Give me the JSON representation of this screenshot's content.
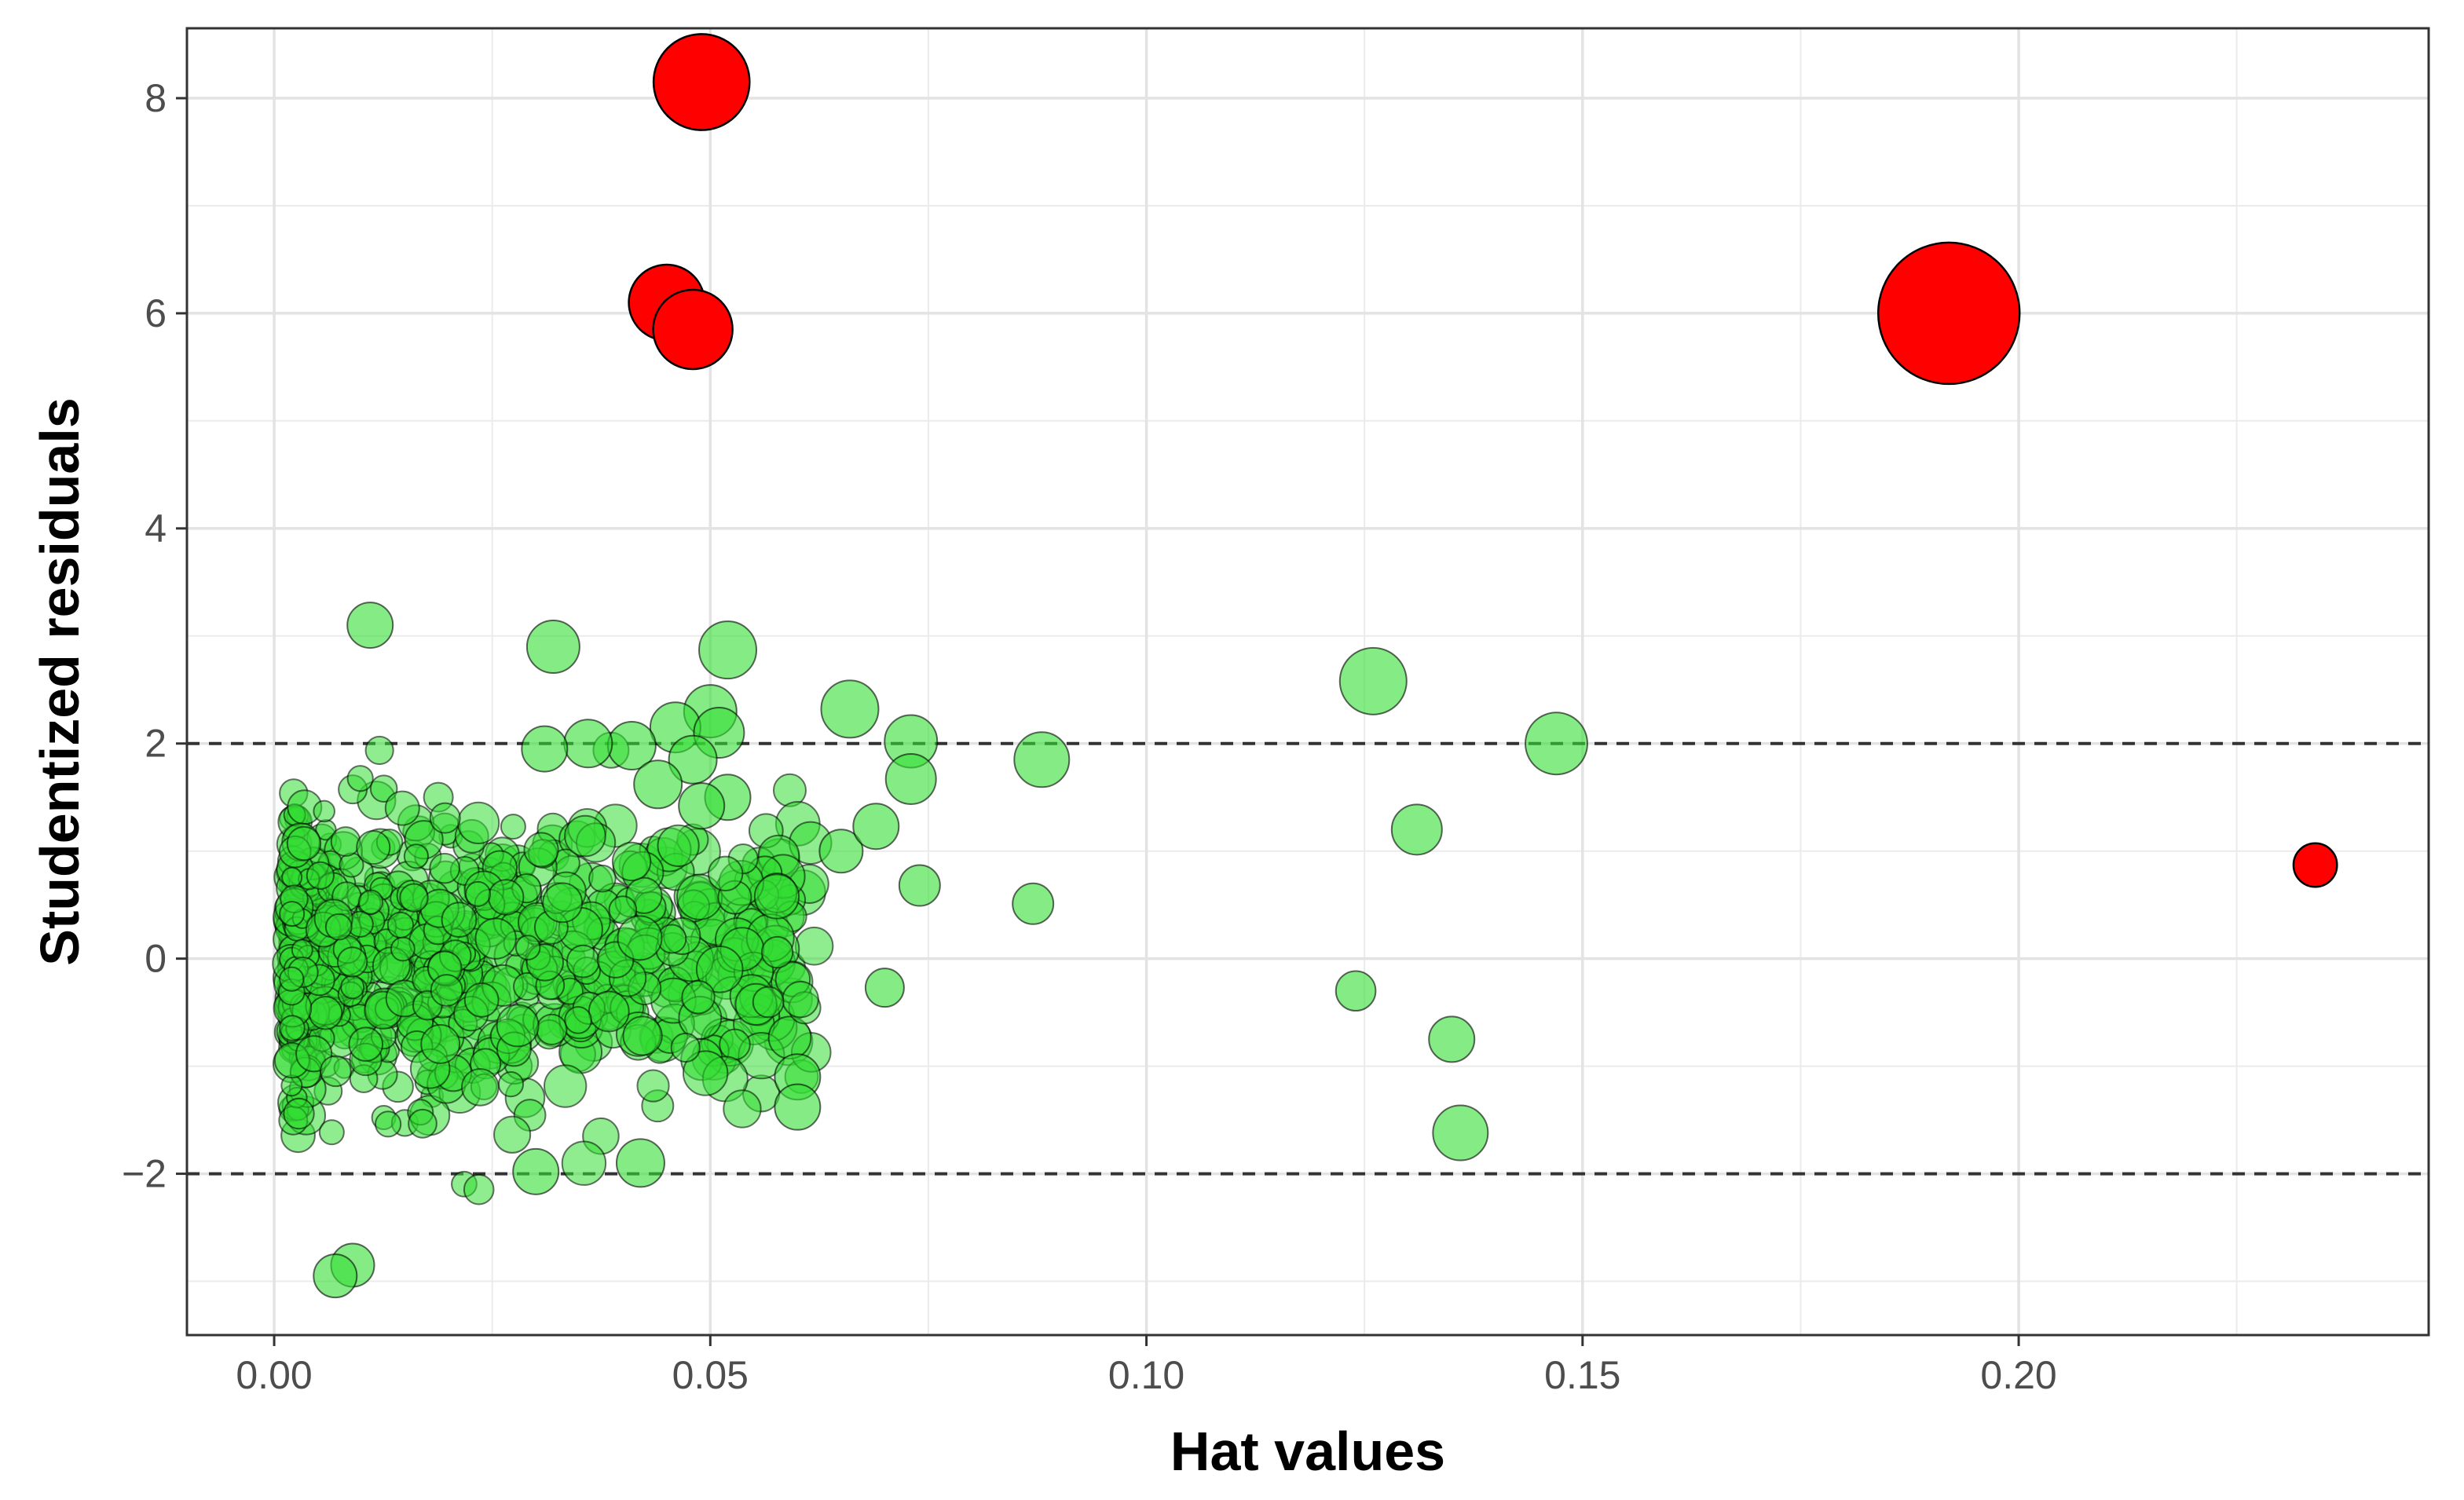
{
  "chart_data": {
    "type": "scatter",
    "title": "",
    "xlabel": "Hat values",
    "ylabel": "Studentized residuals",
    "xlim": [
      -0.01,
      0.247
    ],
    "ylim": [
      -3.5,
      8.65
    ],
    "x_ticks": [
      0.0,
      0.05,
      0.1,
      0.15,
      0.2
    ],
    "x_tick_labels": [
      "0.00",
      "0.05",
      "0.10",
      "0.15",
      "0.20"
    ],
    "y_ticks": [
      -2,
      0,
      2,
      4,
      6,
      8
    ],
    "y_tick_labels": [
      "−2",
      "0",
      "2",
      "4",
      "6",
      "8"
    ],
    "x_minor_ticks": [
      0.025,
      0.075,
      0.125,
      0.175,
      0.225
    ],
    "y_minor_ticks": [
      -3,
      -1,
      1,
      3,
      5,
      7
    ],
    "grid": true,
    "reference_lines": [
      {
        "axis": "y",
        "value": 2,
        "style": "dashed"
      },
      {
        "axis": "y",
        "value": -2,
        "style": "dashed"
      }
    ],
    "colors": {
      "influential": "#ff0000",
      "normal": "#33dd33",
      "outline": "#000000",
      "grid": "#ebebeb",
      "panel_border": "#333333"
    },
    "size_note": "point size proportional to Cook's distance (relative scale)",
    "influential_points": [
      {
        "x": 0.049,
        "y": 8.15,
        "size": 0.62
      },
      {
        "x": 0.045,
        "y": 6.1,
        "size": 0.45
      },
      {
        "x": 0.048,
        "y": 5.85,
        "size": 0.48
      },
      {
        "x": 0.192,
        "y": 6.0,
        "size": 1.0
      },
      {
        "x": 0.234,
        "y": 0.87,
        "size": 0.18
      }
    ],
    "highlighted_points": [
      {
        "x": 0.032,
        "y": 2.9,
        "size": 0.26
      },
      {
        "x": 0.052,
        "y": 2.87,
        "size": 0.3
      },
      {
        "x": 0.126,
        "y": 2.58,
        "size": 0.38
      },
      {
        "x": 0.147,
        "y": 2.0,
        "size": 0.34
      },
      {
        "x": 0.066,
        "y": 2.32,
        "size": 0.3
      },
      {
        "x": 0.05,
        "y": 2.3,
        "size": 0.26
      },
      {
        "x": 0.073,
        "y": 2.02,
        "size": 0.26
      },
      {
        "x": 0.088,
        "y": 1.85,
        "size": 0.28
      },
      {
        "x": 0.073,
        "y": 1.67,
        "size": 0.24
      },
      {
        "x": 0.131,
        "y": 1.2,
        "size": 0.24
      },
      {
        "x": 0.136,
        "y": -1.62,
        "size": 0.28
      },
      {
        "x": 0.135,
        "y": -0.75,
        "size": 0.2
      },
      {
        "x": 0.124,
        "y": -0.3,
        "size": 0.15
      },
      {
        "x": 0.087,
        "y": 0.51,
        "size": 0.16
      },
      {
        "x": 0.074,
        "y": 0.68,
        "size": 0.16
      },
      {
        "x": 0.07,
        "y": -0.27,
        "size": 0.14
      },
      {
        "x": 0.06,
        "y": -1.1,
        "size": 0.2
      },
      {
        "x": 0.06,
        "y": -1.38,
        "size": 0.2
      },
      {
        "x": 0.065,
        "y": 1.0,
        "size": 0.18
      },
      {
        "x": 0.069,
        "y": 1.23,
        "size": 0.2
      },
      {
        "x": 0.011,
        "y": 3.1,
        "size": 0.2
      },
      {
        "x": 0.042,
        "y": -1.9,
        "size": 0.22
      },
      {
        "x": 0.03,
        "y": -1.98,
        "size": 0.2
      },
      {
        "x": 0.009,
        "y": -2.85,
        "size": 0.18
      },
      {
        "x": 0.007,
        "y": -2.95,
        "size": 0.18
      },
      {
        "x": 0.046,
        "y": 2.15,
        "size": 0.24
      },
      {
        "x": 0.051,
        "y": 2.1,
        "size": 0.24
      },
      {
        "x": 0.041,
        "y": 1.98,
        "size": 0.22
      },
      {
        "x": 0.036,
        "y": 2.0,
        "size": 0.22
      },
      {
        "x": 0.031,
        "y": 1.95,
        "size": 0.2
      },
      {
        "x": 0.048,
        "y": 1.85,
        "size": 0.22
      },
      {
        "x": 0.052,
        "y": 1.5,
        "size": 0.2
      },
      {
        "x": 0.049,
        "y": 1.42,
        "size": 0.2
      },
      {
        "x": 0.044,
        "y": 1.62,
        "size": 0.22
      }
    ],
    "cluster": {
      "description": "dense mass of small green points near hat values 0.00-0.05, residuals roughly -2.6 to 2.7",
      "x_range": [
        0.002,
        0.062
      ],
      "y_range": [
        -2.6,
        2.7
      ],
      "count": 820
    }
  }
}
